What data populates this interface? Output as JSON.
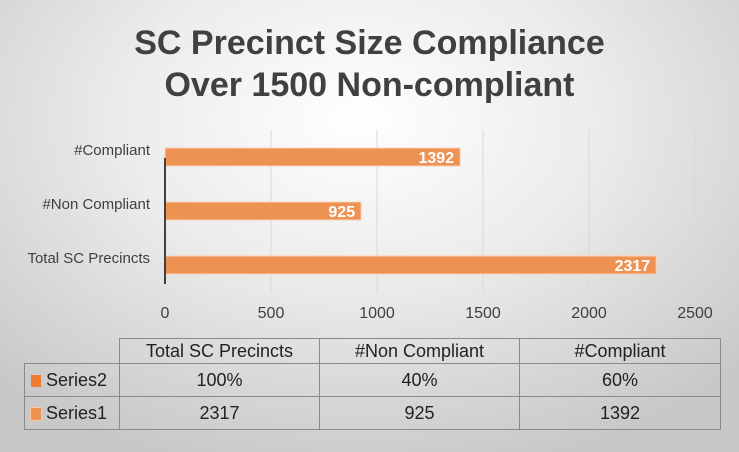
{
  "chart_data": {
    "type": "bar",
    "orientation": "horizontal",
    "title": "SC Precinct Size Compliance Over 1500 Non-compliant",
    "title_lines": [
      "SC Precinct Size Compliance",
      "Over 1500 Non-compliant"
    ],
    "categories": [
      "Total SC Precincts",
      "#Non Compliant",
      "#Compliant"
    ],
    "series": [
      {
        "name": "Series2",
        "values": [
          "100%",
          "40%",
          "60%"
        ],
        "color": "#ED7D31"
      },
      {
        "name": "Series1",
        "values": [
          2317,
          925,
          1392
        ],
        "color": "#EE9254"
      }
    ],
    "xlim": [
      0,
      2500
    ],
    "xticks": [
      0,
      500,
      1000,
      1500,
      2000,
      2500
    ],
    "grid": true,
    "data_table": true
  }
}
